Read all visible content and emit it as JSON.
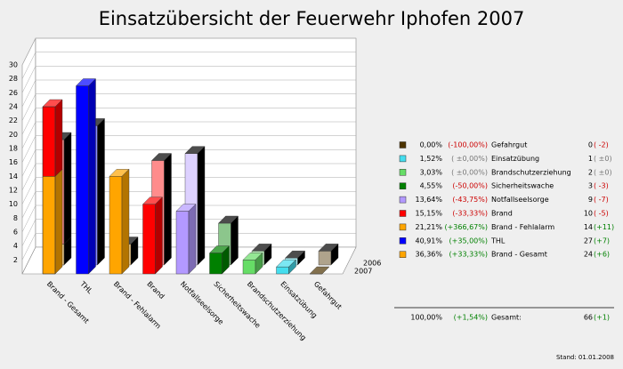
{
  "chart_data": {
    "type": "bar3d",
    "title": "Einsatzübersicht der Feuerwehr Iphofen 2007",
    "categories": [
      "Brand - Gesamt",
      "THL",
      "Brand - Fehlalarm",
      "Brand",
      "Notfallseelsorge",
      "Sicherheitswache",
      "Brandschutzerziehung",
      "Einsatzübung",
      "Gefahrgut"
    ],
    "colors": [
      "#ffa500",
      "#0000ff",
      "#ffa500",
      "#ff0000",
      "#b399ff",
      "#008000",
      "#66dd66",
      "#44ddee",
      "#4d3300"
    ],
    "series": [
      {
        "name": "2006",
        "values": [
          18,
          20,
          3,
          15,
          16,
          6,
          2,
          1,
          2
        ]
      },
      {
        "name": "2007",
        "values": [
          24,
          27,
          14,
          10,
          9,
          3,
          2,
          1,
          0
        ]
      }
    ],
    "stack_parts": [
      2,
      3
    ],
    "ylim": [
      0,
      30
    ],
    "yticks": [
      2,
      4,
      6,
      8,
      10,
      12,
      14,
      16,
      18,
      20,
      22,
      24,
      26,
      28,
      30
    ],
    "grid": true,
    "legend_table": {
      "rows": [
        {
          "share": "36,36%",
          "change": "(+33,33%)",
          "delta": "(+6)"
        },
        {
          "share": "40,91%",
          "change": "(+35,00%)",
          "delta": "(+7)"
        },
        {
          "share": "21,21%",
          "change": "(+366,67%)",
          "delta": "(+11)"
        },
        {
          "share": "15,15%",
          "change": "(-33,33%)",
          "delta": "( -5)"
        },
        {
          "share": "13,64%",
          "change": "(-43,75%)",
          "delta": "( -7)"
        },
        {
          "share": "4,55%",
          "change": "(-50,00%)",
          "delta": "( -3)"
        },
        {
          "share": "3,03%",
          "change": "( ±0,00%)",
          "delta": "( ±0)"
        },
        {
          "share": "1,52%",
          "change": "( ±0,00%)",
          "delta": "( ±0)"
        },
        {
          "share": "0,00%",
          "change": "(-100,00%)",
          "delta": "( -2)"
        }
      ],
      "total": {
        "share": "100,00%",
        "change": "(+1,54%)",
        "label": "Gesamt:",
        "count": 66,
        "delta": "(+1)"
      }
    },
    "footer": "Stand: 01.01.2008"
  }
}
